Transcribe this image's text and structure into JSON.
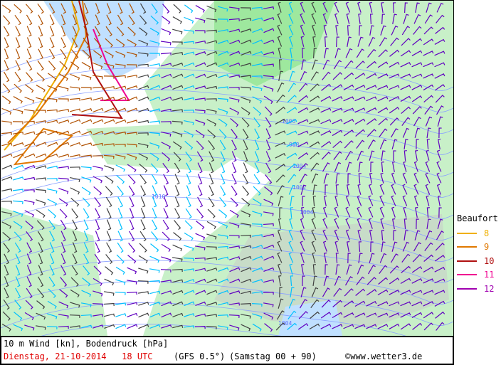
{
  "map": {
    "isobar_labels": [
      "1010",
      "1004",
      "1004",
      "1002",
      "1006",
      "998",
      "1004"
    ],
    "colors": {
      "land": "#c8f0c8",
      "land_dark": "#9ee89e",
      "sea": "#ffffff",
      "low_wind": "#c0e0ff",
      "mountains": "#c8c8c8",
      "isobar": "#8aa0ff"
    }
  },
  "legend": {
    "title": "Beaufort",
    "items": [
      {
        "label": "8",
        "color": "#f0b000"
      },
      {
        "label": "9",
        "color": "#e07800"
      },
      {
        "label": "10",
        "color": "#b01010"
      },
      {
        "label": "11",
        "color": "#f00090"
      },
      {
        "label": "12",
        "color": "#a000b0"
      }
    ]
  },
  "footer": {
    "parameter": "10 m Wind [kn], Bodendruck [hPa]",
    "valid_time": "Dienstag, 21-10-2014   18 UTC",
    "model": "(GFS 0.5°)",
    "run": "(Samstag 00 + 90)",
    "copyright": "©www.wetter3.de"
  }
}
